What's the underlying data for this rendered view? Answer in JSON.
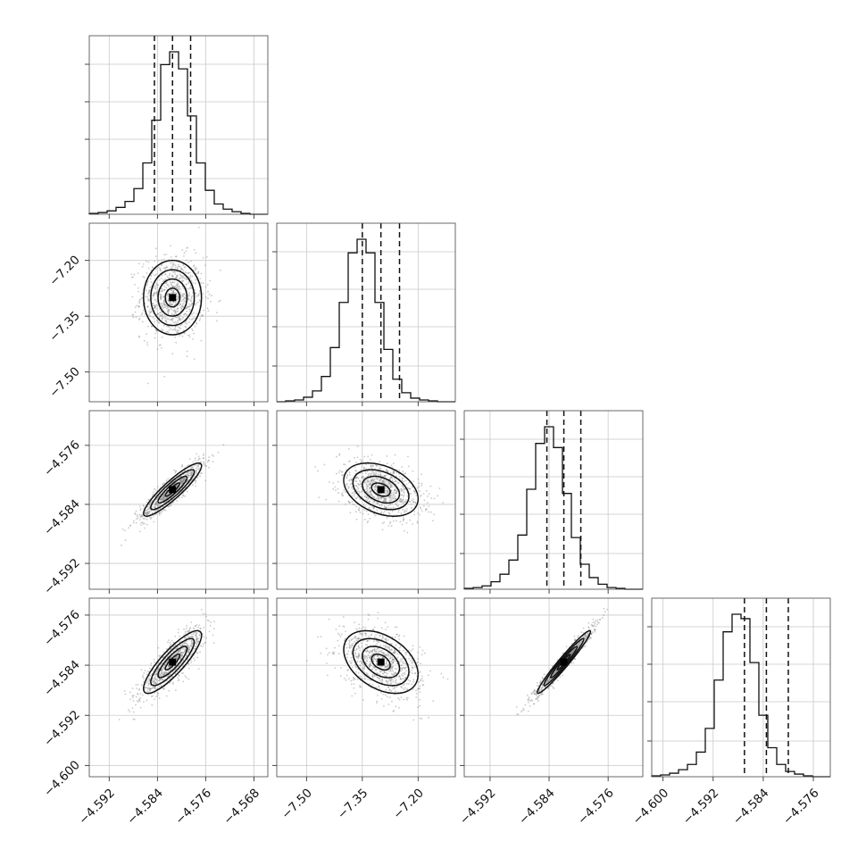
{
  "chart_data": {
    "type": "corner",
    "title": "",
    "grid": true,
    "parameters": [
      {
        "name": "",
        "range": [
          -4.5953,
          -4.5657
        ],
        "ticks": [
          -4.592,
          -4.584,
          -4.576,
          -4.568
        ],
        "tick_labels": [
          "−4.592",
          "−4.584",
          "−4.576",
          "−4.568"
        ],
        "mean": -4.5815,
        "sigma": 0.0024,
        "quantiles": [
          -4.5845,
          -4.5815,
          -4.5785
        ]
      },
      {
        "name": "",
        "range": [
          -7.58,
          -7.1
        ],
        "ticks": [
          -7.5,
          -7.35,
          -7.2
        ],
        "tick_labels": [
          "−7.50",
          "−7.35",
          "−7.20"
        ],
        "mean": -7.3,
        "sigma": 0.05,
        "quantiles": [
          -7.35,
          -7.3,
          -7.25
        ]
      },
      {
        "name": "",
        "range": [
          -4.5955,
          -4.5713
        ],
        "ticks": [
          -4.592,
          -4.584,
          -4.576
        ],
        "tick_labels": [
          "−4.592",
          "−4.584",
          "−4.576"
        ],
        "mean": -4.582,
        "sigma": 0.0018,
        "quantiles": [
          -4.5843,
          -4.582,
          -4.5797
        ]
      },
      {
        "name": "",
        "range": [
          -4.6018,
          -4.5733
        ],
        "ticks": [
          -4.6,
          -4.592,
          -4.584,
          -4.576
        ],
        "tick_labels": [
          "−4.600",
          "−4.592",
          "−4.584",
          "−4.576"
        ],
        "mean": -4.5835,
        "sigma": 0.0025,
        "quantiles": [
          -4.587,
          -4.5835,
          -4.58
        ]
      }
    ],
    "histograms": [
      {
        "counts": [
          1,
          2,
          4,
          8,
          15,
          30,
          60,
          110,
          175,
          190,
          170,
          115,
          60,
          28,
          12,
          6,
          3,
          1,
          0,
          0
        ]
      },
      {
        "counts": [
          0,
          1,
          2,
          5,
          12,
          28,
          60,
          110,
          165,
          180,
          165,
          110,
          58,
          25,
          10,
          4,
          2,
          1,
          0,
          0
        ]
      },
      {
        "counts": [
          1,
          2,
          4,
          9,
          18,
          35,
          65,
          120,
          175,
          195,
          170,
          115,
          62,
          30,
          14,
          6,
          2,
          1,
          0,
          0
        ]
      },
      {
        "counts": [
          1,
          2,
          4,
          8,
          14,
          28,
          55,
          110,
          165,
          185,
          180,
          130,
          70,
          33,
          14,
          6,
          3,
          1,
          0,
          0
        ]
      }
    ],
    "correlations": [
      [
        1,
        0,
        0.9,
        0.85
      ],
      [
        0,
        1,
        -0.35,
        -0.4
      ],
      [
        0.9,
        -0.35,
        1,
        0.97
      ],
      [
        0.85,
        -0.4,
        0.97,
        1
      ]
    ],
    "contour_levels": [
      "0.5 sigma",
      "1 sigma",
      "1.5 sigma",
      "2 sigma"
    ]
  }
}
